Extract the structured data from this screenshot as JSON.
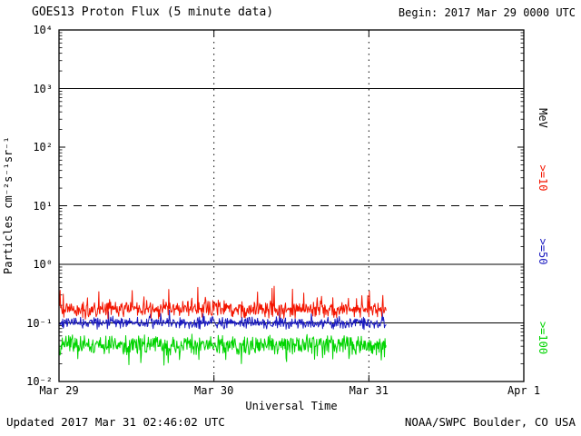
{
  "header": {
    "title": "GOES13 Proton Flux (5 minute data)",
    "begin": "Begin: 2017 Mar 29 0000 UTC"
  },
  "footer": {
    "updated": "Updated 2017 Mar 31 02:46:02 UTC",
    "source": "NOAA/SWPC Boulder, CO USA"
  },
  "chart_data": {
    "type": "line",
    "title": "GOES13 Proton Flux (5 minute data)",
    "xlabel": "Universal Time",
    "ylabel": "Particles cm⁻²s⁻¹sr⁻¹",
    "right_axis_unit": "MeV",
    "y_axis": {
      "scale": "log",
      "exp_min": -2,
      "exp_max": 4,
      "tick_exponents": [
        4,
        3,
        2,
        1,
        0,
        -1,
        -2
      ],
      "tick_labels": [
        "10⁴",
        "10³",
        "10²",
        "10¹",
        "10⁰",
        "10⁻¹",
        "10⁻²"
      ]
    },
    "x_axis": {
      "days_total": 3,
      "tick_days": [
        0,
        1,
        2,
        3
      ],
      "tick_labels": [
        "Mar 29",
        "Mar 30",
        "Mar 31",
        "Apr 1"
      ]
    },
    "gridlines": {
      "solid_exponents": [
        3,
        0,
        -1
      ],
      "dashed_exponents": [
        1
      ],
      "vertical_dotted_days": [
        1,
        2
      ]
    },
    "data_end_day": 2.115,
    "points_per_day": 288,
    "series": [
      {
        "name": "gte-10-MeV",
        "label": ">=10",
        "color": "#f41500",
        "median_flux": 0.17,
        "log_spread": 0.17,
        "spike_prob": 0.06,
        "spike_mag": 0.22,
        "spike_dir": 1,
        "seed": 41
      },
      {
        "name": "gte-50-MeV",
        "label": ">=50",
        "color": "#1a1ac0",
        "median_flux": 0.1,
        "log_spread": 0.12,
        "spike_prob": 0.04,
        "spike_mag": 0.14,
        "spike_dir": 1,
        "seed": 42
      },
      {
        "name": "gte-100-MeV",
        "label": ">=100",
        "color": "#00d400",
        "median_flux": 0.042,
        "log_spread": 0.19,
        "spike_prob": 0.05,
        "spike_mag": 0.2,
        "spike_dir": -1,
        "seed": 43
      }
    ]
  }
}
